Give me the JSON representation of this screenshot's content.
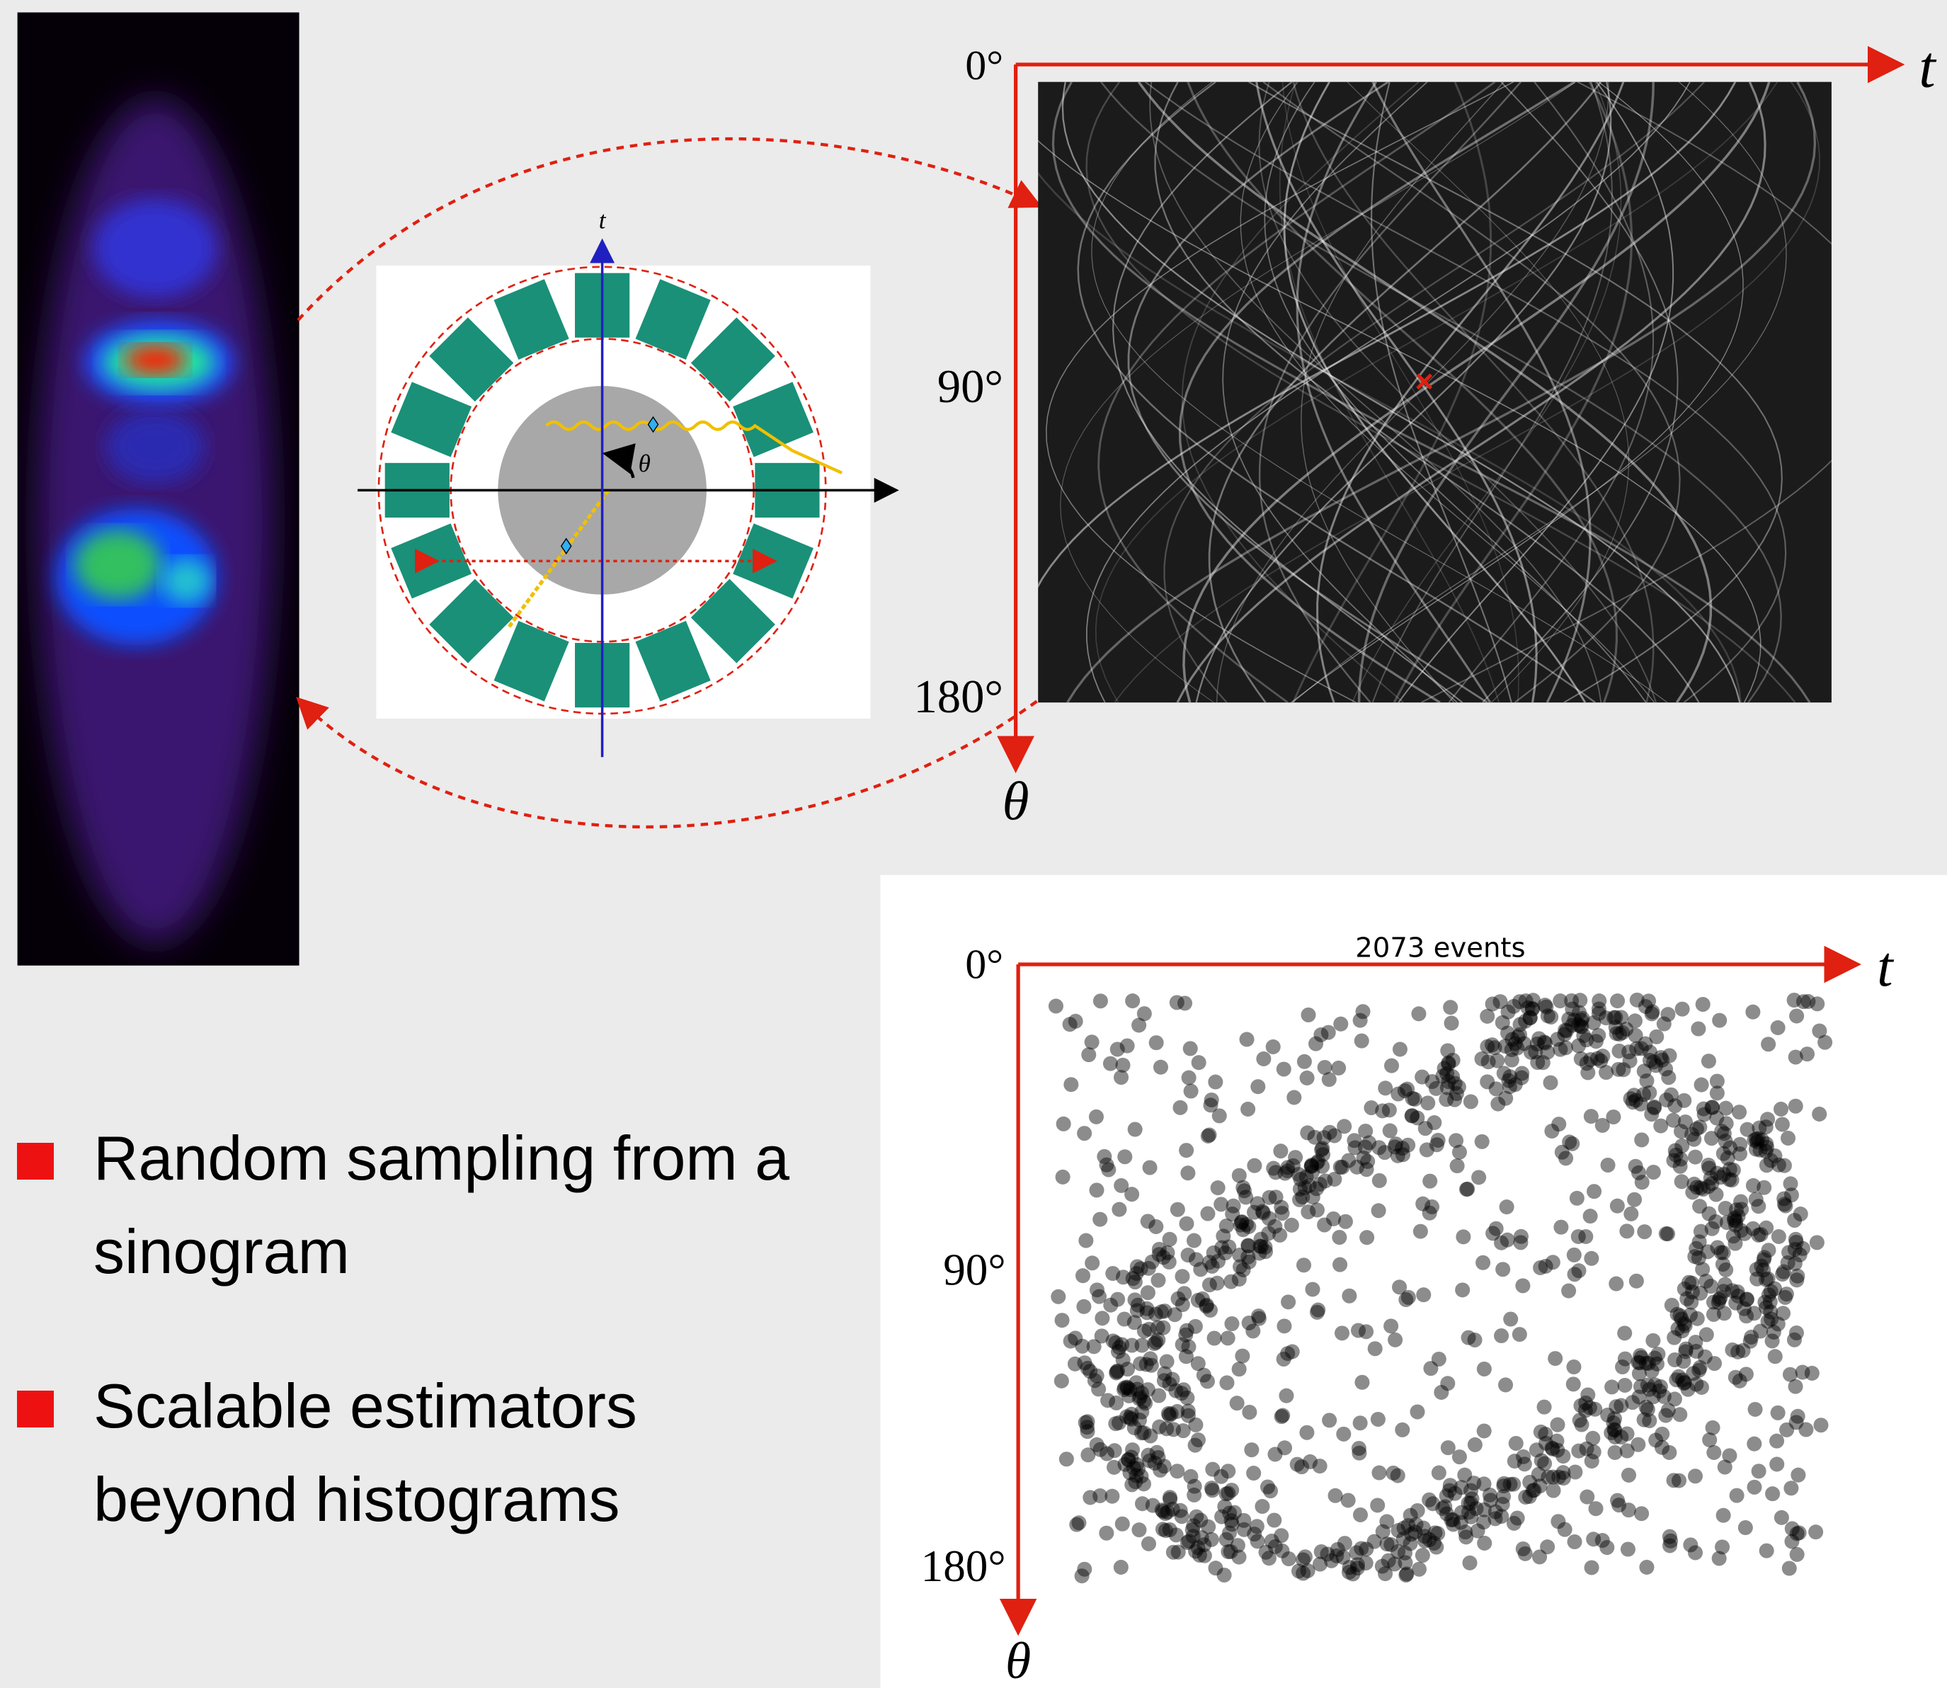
{
  "detector_diagram": {
    "axis_t": "t",
    "axis_theta": "θ"
  },
  "sinogram": {
    "axis_t": "t",
    "axis_theta": "θ",
    "angle_labels": [
      "0°",
      "90°",
      "180°"
    ]
  },
  "event_plot": {
    "title": "2073 events",
    "axis_t": "t",
    "axis_theta": "θ",
    "angle_labels": [
      "0°",
      "90°",
      "180°"
    ]
  },
  "bullets": [
    "Random sampling from a sinogram",
    "Scalable estimators beyond histograms"
  ]
}
